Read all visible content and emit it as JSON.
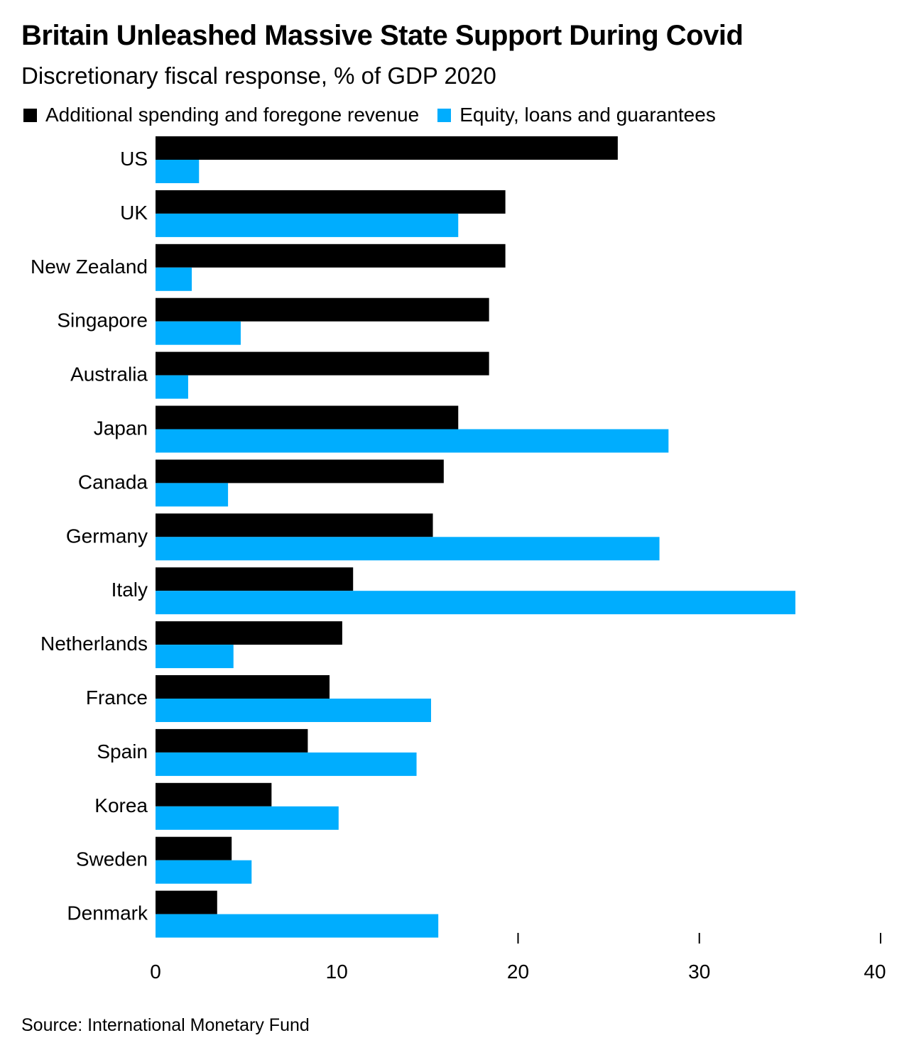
{
  "colors": {
    "spending": "#000000",
    "equity": "#00adfe"
  },
  "chart_data": {
    "type": "bar",
    "orientation": "horizontal",
    "title": "Britain Unleashed Massive State Support During Covid",
    "subtitle": "Discretionary fiscal response, % of GDP 2020",
    "categories": [
      "US",
      "UK",
      "New Zealand",
      "Singapore",
      "Australia",
      "Japan",
      "Canada",
      "Germany",
      "Italy",
      "Netherlands",
      "France",
      "Spain",
      "Korea",
      "Sweden",
      "Denmark"
    ],
    "series": [
      {
        "name": "Additional spending and foregone revenue",
        "values": [
          25.5,
          19.3,
          19.3,
          18.4,
          18.4,
          16.7,
          15.9,
          15.3,
          10.9,
          10.3,
          9.6,
          8.4,
          6.4,
          4.2,
          3.4
        ]
      },
      {
        "name": "Equity, loans and guarantees",
        "values": [
          2.4,
          16.7,
          2.0,
          4.7,
          1.8,
          28.3,
          4.0,
          27.8,
          35.3,
          4.3,
          15.2,
          14.4,
          10.1,
          5.3,
          15.6
        ]
      }
    ],
    "xlim": [
      0,
      40
    ],
    "xticks": [
      "0",
      "10",
      "20",
      "30",
      "40"
    ],
    "grid": false,
    "legend_position": "top-left"
  },
  "source": "Source: International Monetary Fund"
}
